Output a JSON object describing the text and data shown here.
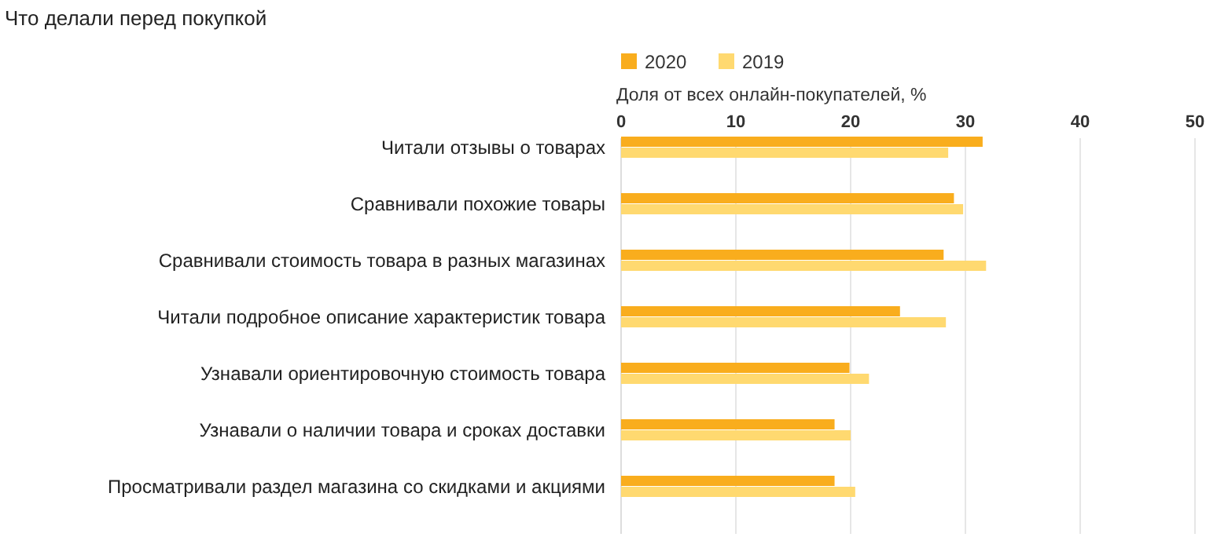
{
  "chart_data": {
    "type": "bar",
    "orientation": "horizontal",
    "title": "Что делали перед покупкой",
    "xlabel": "Доля от всех онлайн-покупателей, %",
    "categories": [
      "Читали отзывы о товарах",
      "Сравнивали похожие товары",
      "Сравнивали стоимость товара в разных магазинах",
      "Читали подробное описание характеристик товара",
      "Узнавали ориентировочную стоимость товара",
      "Узнавали о наличии товара и сроках доставки",
      "Просматривали раздел магазина со скидками и акциями"
    ],
    "series": [
      {
        "name": "2020",
        "color": "#f9ad1d",
        "values": [
          31.5,
          29.0,
          28.1,
          24.3,
          19.9,
          18.6,
          18.6
        ]
      },
      {
        "name": "2019",
        "color": "#ffd970",
        "values": [
          28.5,
          29.8,
          31.8,
          28.3,
          21.6,
          20.0,
          20.4
        ]
      }
    ],
    "xlim": [
      0,
      50
    ],
    "xticks": [
      0,
      10,
      20,
      30,
      40,
      50
    ],
    "grid": "x",
    "legend": "top left"
  }
}
